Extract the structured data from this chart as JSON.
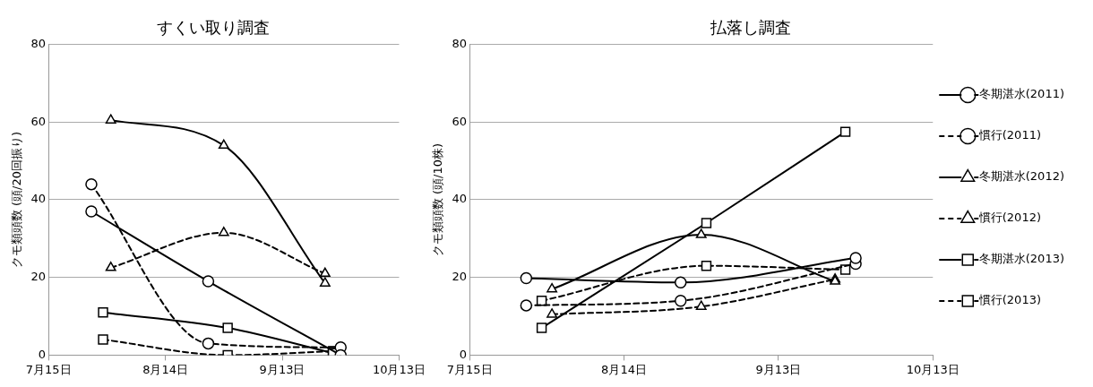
{
  "chart_data": [
    {
      "type": "line",
      "title": "すくい取り調査",
      "ylabel": "クモ類頭数 (頭/20回振り)",
      "xlim": [
        "--07-15",
        "--10-13"
      ],
      "xticks": [
        {
          "value": "--07-15",
          "label": "7月15日"
        },
        {
          "value": "--08-14",
          "label": "8月14日"
        },
        {
          "value": "--09-13",
          "label": "9月13日"
        },
        {
          "value": "--10-13",
          "label": "10月13日"
        }
      ],
      "ylim": [
        0,
        80
      ],
      "yticks": [
        0,
        20,
        40,
        60,
        80
      ],
      "grid": "y",
      "legend": false,
      "series": [
        {
          "color": "#000000",
          "marker": "circle",
          "line_style": "solid",
          "x": [
            "--07-26",
            "--08-25",
            "--09-28"
          ],
          "values": [
            37,
            19,
            0
          ]
        },
        {
          "color": "#000000",
          "marker": "circle",
          "line_style": "dashed",
          "x": [
            "--07-26",
            "--08-25",
            "--09-28"
          ],
          "values": [
            44,
            3,
            2
          ]
        },
        {
          "color": "#000000",
          "marker": "triangle",
          "line_style": "solid",
          "x": [
            "--07-31",
            "--08-29",
            "--09-24"
          ],
          "values": [
            60.5,
            54,
            18.5
          ]
        },
        {
          "color": "#000000",
          "marker": "triangle",
          "line_style": "dashed",
          "x": [
            "--07-31",
            "--08-29",
            "--09-24"
          ],
          "values": [
            22.5,
            31.5,
            21
          ]
        },
        {
          "color": "#000000",
          "marker": "square",
          "line_style": "solid",
          "x": [
            "--07-29",
            "--08-30",
            "--09-26"
          ],
          "values": [
            11,
            7,
            0.5
          ]
        },
        {
          "color": "#000000",
          "marker": "square",
          "line_style": "dashed",
          "x": [
            "--07-29",
            "--08-30",
            "--09-26"
          ],
          "values": [
            4,
            0,
            1
          ]
        }
      ]
    },
    {
      "type": "line",
      "title": "払落し調査",
      "ylabel": "クモ類頭数 (頭/10株)",
      "xlim": [
        "--07-15",
        "--10-13"
      ],
      "xticks": [
        {
          "value": "--07-15",
          "label": "7月15日"
        },
        {
          "value": "--08-14",
          "label": "8月14日"
        },
        {
          "value": "--09-13",
          "label": "9月13日"
        },
        {
          "value": "--10-13",
          "label": "10月13日"
        }
      ],
      "ylim": [
        0,
        80
      ],
      "yticks": [
        0,
        20,
        40,
        60,
        80
      ],
      "grid": "y",
      "legend": "right",
      "series": [
        {
          "name": "冬期湛水(2011)",
          "color": "#000000",
          "marker": "circle",
          "line_style": "solid",
          "x": [
            "--07-26",
            "--08-25",
            "--09-28"
          ],
          "values": [
            19.8,
            18.7,
            25
          ]
        },
        {
          "name": "慣行(2011)",
          "color": "#000000",
          "marker": "circle",
          "line_style": "dashed",
          "x": [
            "--07-26",
            "--08-25",
            "--09-28"
          ],
          "values": [
            12.8,
            14,
            23.5
          ]
        },
        {
          "name": "冬期湛水(2012)",
          "color": "#000000",
          "marker": "triangle",
          "line_style": "solid",
          "x": [
            "--07-31",
            "--08-29",
            "--09-24"
          ],
          "values": [
            17,
            31,
            19
          ]
        },
        {
          "name": "慣行(2012)",
          "color": "#000000",
          "marker": "triangle",
          "line_style": "dashed",
          "x": [
            "--07-31",
            "--08-29",
            "--09-24"
          ],
          "values": [
            10.5,
            12.5,
            19.5
          ]
        },
        {
          "name": "冬期湛水(2013)",
          "color": "#000000",
          "marker": "square",
          "line_style": "solid",
          "x": [
            "--07-29",
            "--08-30",
            "--09-26"
          ],
          "values": [
            7,
            34,
            57.5
          ]
        },
        {
          "name": "慣行(2013)",
          "color": "#000000",
          "marker": "square",
          "line_style": "dashed",
          "x": [
            "--07-29",
            "--08-30",
            "--09-26"
          ],
          "values": [
            14,
            23,
            22
          ]
        }
      ]
    }
  ]
}
